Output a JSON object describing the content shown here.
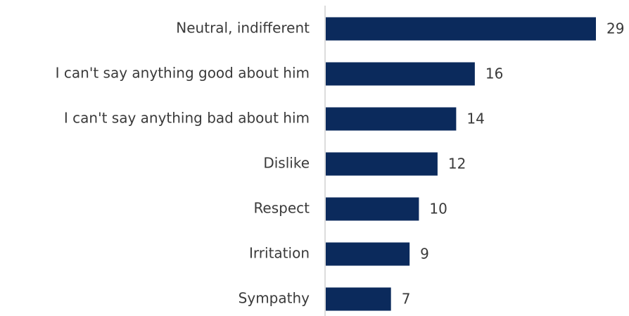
{
  "chart_data": {
    "type": "bar",
    "orientation": "horizontal",
    "categories": [
      "Neutral, indifferent",
      "I can't say anything good about him",
      "I can't say anything bad about him",
      "Dislike",
      "Respect",
      "Irritation",
      "Sympathy"
    ],
    "values": [
      29,
      16,
      14,
      12,
      10,
      9,
      7
    ],
    "color": "#0b2a5c"
  }
}
